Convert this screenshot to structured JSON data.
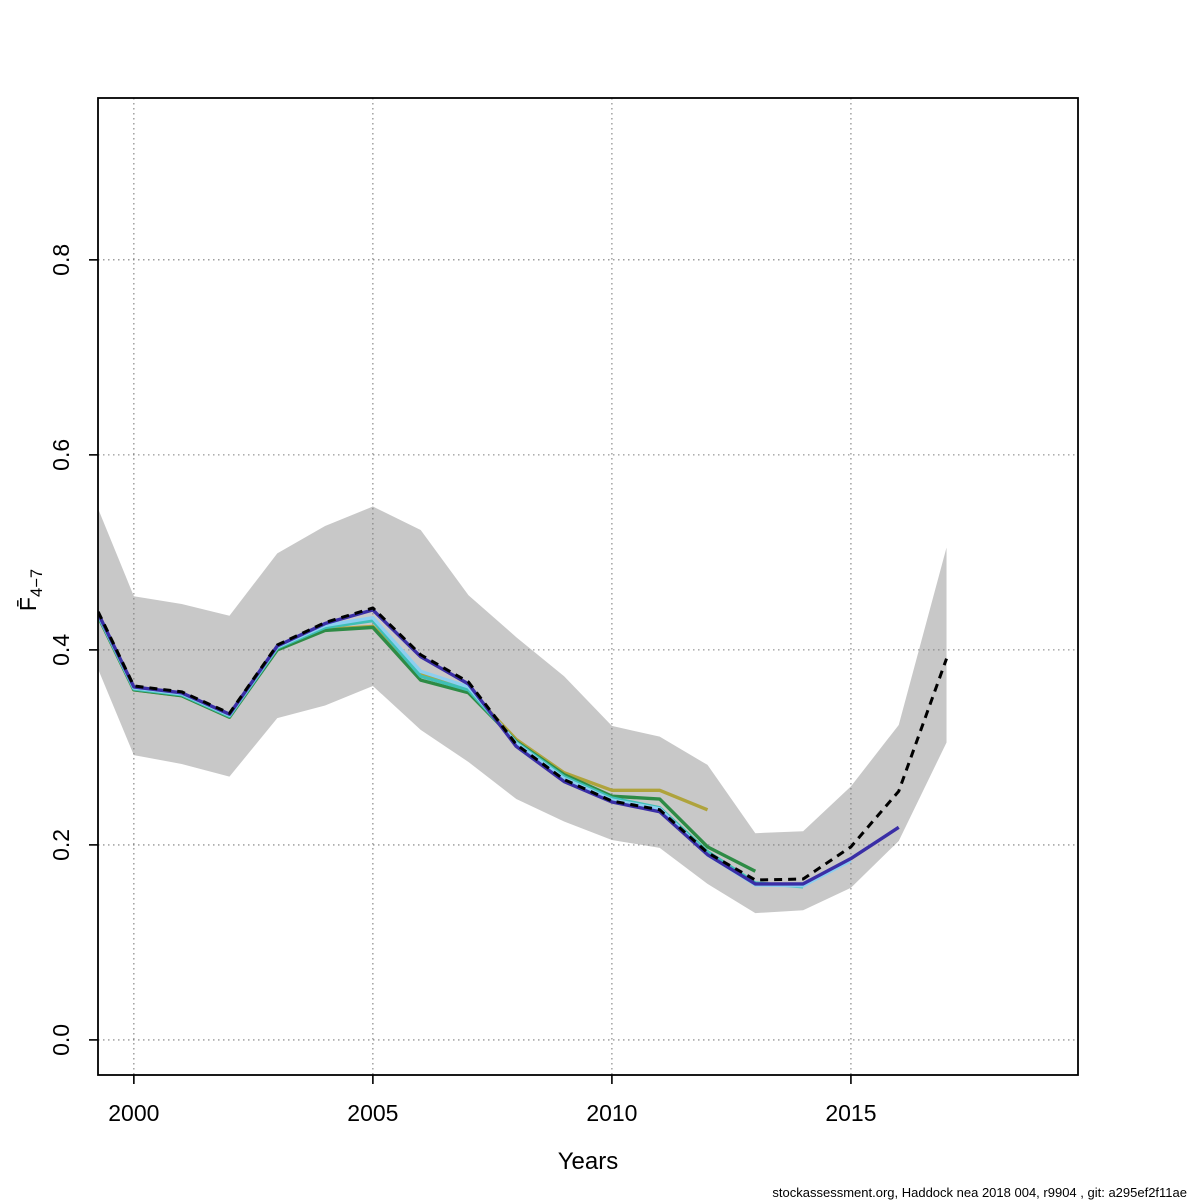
{
  "footer": {
    "text": "stockassessment.org, Haddock  nea  2018  004, r9904 , git: a295ef2f11ae"
  },
  "chart_data": {
    "type": "line",
    "title": "",
    "xlabel": "Years",
    "ylabel": "F̄4−7",
    "ylabel_main": "F̄",
    "ylabel_sub": "4−7",
    "xlim": [
      1999.25,
      2019.75
    ],
    "ylim": [
      -0.036,
      0.966
    ],
    "x_ticks": [
      2000,
      2005,
      2010,
      2015
    ],
    "y_ticks": [
      0.0,
      0.2,
      0.4,
      0.6,
      0.8
    ],
    "y_tick_labels": [
      "0.0",
      "0.2",
      "0.4",
      "0.6",
      "0.8"
    ],
    "grid": "dotted",
    "legend": "none",
    "colors": {
      "band": "#c8c8c8",
      "grid": "#7f7f7f",
      "axis": "#000000"
    },
    "band": {
      "name": "final-run-confidence-band",
      "color": "#c8c8c8",
      "x": [
        1999,
        2000,
        2001,
        2002,
        2003,
        2004,
        2005,
        2006,
        2007,
        2008,
        2009,
        2010,
        2011,
        2012,
        2013,
        2014,
        2015,
        2016,
        2017
      ],
      "lower": [
        0.41,
        0.292,
        0.283,
        0.27,
        0.33,
        0.343,
        0.363,
        0.318,
        0.285,
        0.247,
        0.224,
        0.205,
        0.197,
        0.16,
        0.13,
        0.133,
        0.156,
        0.204,
        0.305
      ],
      "upper": [
        0.575,
        0.455,
        0.447,
        0.435,
        0.499,
        0.527,
        0.547,
        0.523,
        0.456,
        0.413,
        0.373,
        0.322,
        0.311,
        0.282,
        0.212,
        0.214,
        0.26,
        0.323,
        0.505
      ]
    },
    "series": [
      {
        "name": "retro-peel-2012",
        "color": "#AFA33C",
        "dashed": false,
        "x": [
          1999,
          2000,
          2001,
          2002,
          2003,
          2004,
          2005,
          2006,
          2007,
          2008,
          2009,
          2010,
          2011,
          2012
        ],
        "values": [
          0.46,
          0.359,
          0.353,
          0.331,
          0.401,
          0.421,
          0.424,
          0.376,
          0.36,
          0.308,
          0.274,
          0.256,
          0.256,
          0.236
        ]
      },
      {
        "name": "retro-peel-2013",
        "color": "#2E8B45",
        "dashed": false,
        "x": [
          1999,
          2000,
          2001,
          2002,
          2003,
          2004,
          2005,
          2006,
          2007,
          2008,
          2009,
          2010,
          2011,
          2012,
          2013
        ],
        "values": [
          0.46,
          0.359,
          0.353,
          0.331,
          0.4,
          0.42,
          0.423,
          0.369,
          0.356,
          0.306,
          0.272,
          0.25,
          0.247,
          0.198,
          0.173
        ]
      },
      {
        "name": "retro-peel-2014",
        "color": "#3FBFB5",
        "dashed": false,
        "x": [
          1999,
          2000,
          2001,
          2002,
          2003,
          2004,
          2005,
          2006,
          2007,
          2008,
          2009,
          2010,
          2011,
          2012,
          2013,
          2014
        ],
        "values": [
          0.461,
          0.36,
          0.354,
          0.332,
          0.402,
          0.423,
          0.43,
          0.373,
          0.359,
          0.305,
          0.27,
          0.248,
          0.238,
          0.193,
          0.161,
          0.157
        ]
      },
      {
        "name": "retro-peel-2015",
        "color": "#8CCFF0",
        "dashed": false,
        "x": [
          1999,
          2000,
          2001,
          2002,
          2003,
          2004,
          2005,
          2006,
          2007,
          2008,
          2009,
          2010,
          2011,
          2012,
          2013,
          2014,
          2015
        ],
        "values": [
          0.462,
          0.361,
          0.355,
          0.333,
          0.403,
          0.425,
          0.433,
          0.378,
          0.362,
          0.304,
          0.268,
          0.246,
          0.237,
          0.19,
          0.159,
          0.158,
          0.184
        ]
      },
      {
        "name": "retro-peel-2016",
        "color": "#3A2EA6",
        "dashed": false,
        "x": [
          1999,
          2000,
          2001,
          2002,
          2003,
          2004,
          2005,
          2006,
          2007,
          2008,
          2009,
          2010,
          2011,
          2012,
          2013,
          2014,
          2015,
          2016
        ],
        "values": [
          0.463,
          0.362,
          0.356,
          0.334,
          0.404,
          0.427,
          0.441,
          0.393,
          0.365,
          0.301,
          0.265,
          0.244,
          0.234,
          0.19,
          0.16,
          0.16,
          0.186,
          0.218
        ]
      },
      {
        "name": "final-run-2017",
        "color": "#000000",
        "dashed": true,
        "x": [
          1999,
          2000,
          2001,
          2002,
          2003,
          2004,
          2005,
          2006,
          2007,
          2008,
          2009,
          2010,
          2011,
          2012,
          2013,
          2014,
          2015,
          2016,
          2017
        ],
        "values": [
          0.465,
          0.363,
          0.357,
          0.335,
          0.405,
          0.428,
          0.443,
          0.395,
          0.367,
          0.303,
          0.267,
          0.245,
          0.236,
          0.192,
          0.164,
          0.165,
          0.198,
          0.255,
          0.391
        ]
      }
    ]
  }
}
